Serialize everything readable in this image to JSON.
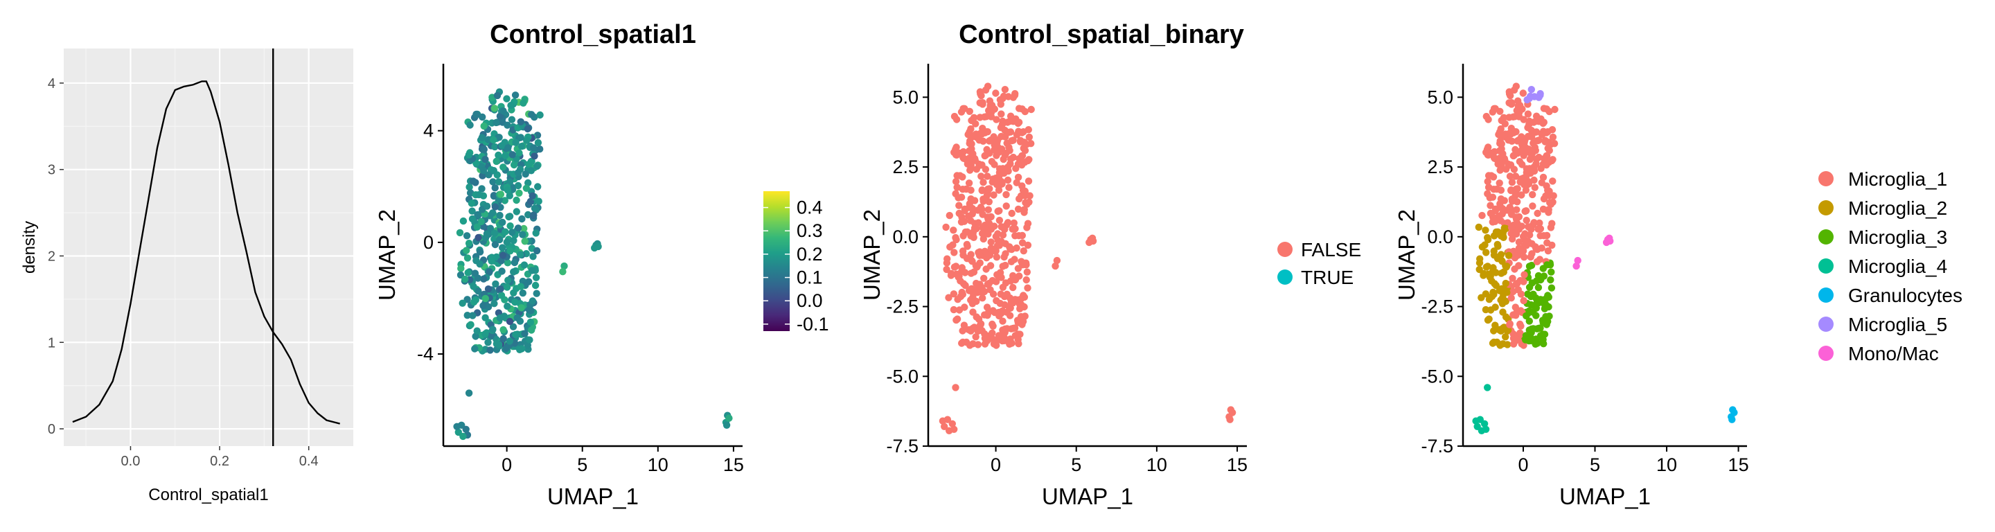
{
  "chart_data": [
    {
      "id": "density",
      "type": "area",
      "xlabel": "Control_spatial1",
      "ylabel": "density",
      "xlim": [
        -0.15,
        0.5
      ],
      "ylim": [
        -0.2,
        4.4
      ],
      "xticks": [
        0.0,
        0.2,
        0.4
      ],
      "xtick_labels": [
        "0.0",
        "0.2",
        "0.4"
      ],
      "yticks": [
        0,
        1,
        2,
        3,
        4
      ],
      "ytick_labels": [
        "0",
        "1",
        "2",
        "3",
        "4"
      ],
      "grid": true,
      "background": "#ebebeb",
      "vline": 0.32,
      "x": [
        -0.13,
        -0.1,
        -0.07,
        -0.04,
        -0.02,
        0.0,
        0.02,
        0.04,
        0.06,
        0.08,
        0.1,
        0.12,
        0.14,
        0.16,
        0.17,
        0.18,
        0.2,
        0.22,
        0.24,
        0.26,
        0.28,
        0.3,
        0.32,
        0.34,
        0.36,
        0.38,
        0.4,
        0.42,
        0.44,
        0.47
      ],
      "y": [
        0.08,
        0.14,
        0.28,
        0.55,
        0.92,
        1.45,
        2.05,
        2.65,
        3.25,
        3.7,
        3.92,
        3.96,
        3.98,
        4.02,
        4.02,
        3.9,
        3.55,
        3.05,
        2.5,
        2.05,
        1.58,
        1.3,
        1.12,
        0.98,
        0.8,
        0.52,
        0.3,
        0.18,
        0.1,
        0.06
      ]
    },
    {
      "id": "continuous",
      "type": "scatter",
      "title": "Control_spatial1",
      "xlabel": "UMAP_1",
      "ylabel": "UMAP_2",
      "xlim": [
        -4.2,
        15.6
      ],
      "ylim": [
        -7.3,
        6.4
      ],
      "xticks": [
        0,
        5,
        10,
        15
      ],
      "xtick_labels": [
        "0",
        "5",
        "10",
        "15"
      ],
      "yticks": [
        -4,
        0,
        4
      ],
      "ytick_labels": [
        "-4",
        "0",
        "4"
      ],
      "color_scale": "viridis",
      "colorbar": {
        "min": -0.13,
        "max": 0.47,
        "ticks": [
          -0.1,
          0.0,
          0.1,
          0.2,
          0.3,
          0.4
        ],
        "tick_labels": [
          "-0.1",
          "0.0",
          "0.1",
          "0.2",
          "0.3",
          "0.4"
        ]
      }
    },
    {
      "id": "binary",
      "type": "scatter",
      "title": "Control_spatial_binary",
      "xlabel": "UMAP_1",
      "ylabel": "UMAP_2",
      "xlim": [
        -4.2,
        15.6
      ],
      "ylim": [
        -7.5,
        6.2
      ],
      "xticks": [
        0,
        5,
        10,
        15
      ],
      "xtick_labels": [
        "0",
        "5",
        "10",
        "15"
      ],
      "yticks": [
        -7.5,
        -5.0,
        -2.5,
        0.0,
        2.5,
        5.0
      ],
      "ytick_labels": [
        "-7.5",
        "-5.0",
        "-2.5",
        "0.0",
        "2.5",
        "5.0"
      ],
      "legend": [
        {
          "label": "FALSE",
          "color": "#F8766D"
        },
        {
          "label": "TRUE",
          "color": "#00BFC4"
        }
      ],
      "legend_position": "right"
    },
    {
      "id": "clusters",
      "type": "scatter",
      "title": "",
      "xlabel": "UMAP_1",
      "ylabel": "UMAP_2",
      "xlim": [
        -4.2,
        15.6
      ],
      "ylim": [
        -7.5,
        6.2
      ],
      "xticks": [
        0,
        5,
        10,
        15
      ],
      "xtick_labels": [
        "0",
        "5",
        "10",
        "15"
      ],
      "yticks": [
        -7.5,
        -5.0,
        -2.5,
        0.0,
        2.5,
        5.0
      ],
      "ytick_labels": [
        "-7.5",
        "-5.0",
        "-2.5",
        "0.0",
        "2.5",
        "5.0"
      ],
      "legend": [
        {
          "label": "Microglia_1",
          "color": "#F8766D"
        },
        {
          "label": "Microglia_2",
          "color": "#C49A00"
        },
        {
          "label": "Microglia_3",
          "color": "#53B400"
        },
        {
          "label": "Microglia_4",
          "color": "#00C094"
        },
        {
          "label": "Granulocytes",
          "color": "#00B6EB"
        },
        {
          "label": "Microglia_5",
          "color": "#A58AFF"
        },
        {
          "label": "Mono/Mac",
          "color": "#FB61D7"
        }
      ],
      "legend_position": "right"
    }
  ]
}
